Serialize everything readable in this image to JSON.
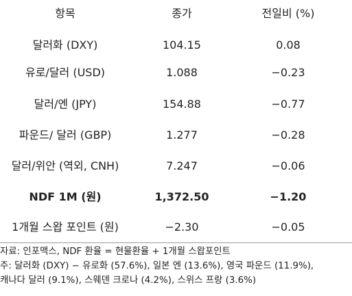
{
  "table": {
    "headers": [
      "항목",
      "종가",
      "전일비 (%)"
    ],
    "rows": [
      {
        "item": "달러화 (DXY)",
        "close": "104.15",
        "change": "0.08",
        "bold": false
      },
      {
        "item": "유로/달러 (USD)",
        "close": "1.088",
        "change": "−0.23",
        "bold": false
      },
      {
        "item": "달러/엔 (JPY)",
        "close": "154.88",
        "change": "−0.77",
        "bold": false
      },
      {
        "item": "파운드/ 달러 (GBP)",
        "close": "1.277",
        "change": "−0.28",
        "bold": false
      },
      {
        "item": "달러/위안 (역외, CNH)",
        "close": "7.247",
        "change": "−0.06",
        "bold": false
      },
      {
        "item": "NDF 1M (원)",
        "close": "1,372.50",
        "change": "−1.20",
        "bold": true
      },
      {
        "item": "1개월 스왑 포인트 (원)",
        "close": "−2.30",
        "change": "−0.05",
        "bold": false
      }
    ]
  },
  "notes": [
    "자료: 인포맥스, NDF 환율 = 현물환율 + 1개월 스왑포인트",
    "주: 달러화 (DXY) − 유로화 (57.6%), 일본 엔 (13.6%), 영국 파운드 (11.9%),",
    "캐나다 달러 (9.1%), 스웨덴 크로나 (4.2%), 스위스 프랑 (3.6%)"
  ]
}
